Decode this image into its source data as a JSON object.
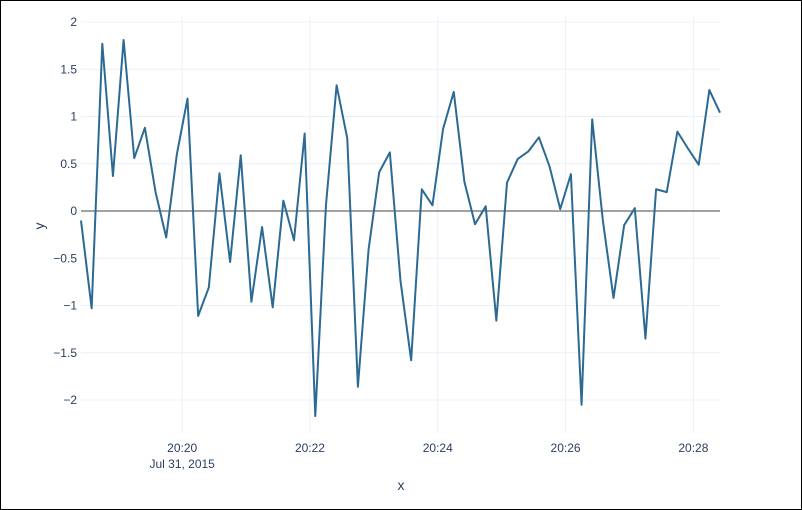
{
  "chart_data": {
    "type": "line",
    "xlabel": "x",
    "ylabel": "y",
    "ylim": [
      -2.35,
      2.05
    ],
    "xlim": [
      "2015-07-31 20:18:25",
      "2015-07-31 20:28:25"
    ],
    "x_ticks": [
      {
        "value": "2015-07-31 20:20:00",
        "label": "20:20",
        "sublabel": "Jul 31, 2015"
      },
      {
        "value": "2015-07-31 20:22:00",
        "label": "20:22"
      },
      {
        "value": "2015-07-31 20:24:00",
        "label": "20:24"
      },
      {
        "value": "2015-07-31 20:26:00",
        "label": "20:26"
      },
      {
        "value": "2015-07-31 20:28:00",
        "label": "20:28"
      }
    ],
    "y_ticks": [
      {
        "value": 2,
        "label": "2"
      },
      {
        "value": 1.5,
        "label": "1.5"
      },
      {
        "value": 1,
        "label": "1"
      },
      {
        "value": 0.5,
        "label": "0.5"
      },
      {
        "value": 0,
        "label": "0"
      },
      {
        "value": -0.5,
        "label": "−0.5"
      },
      {
        "value": -1,
        "label": "−1"
      },
      {
        "value": -1.5,
        "label": "−1.5"
      },
      {
        "value": -2,
        "label": "−2"
      }
    ],
    "grid": true,
    "zero_line": true,
    "line_color": "#2c6a94",
    "grid_color": "#ebf0f8",
    "zeroline_color": "#444444",
    "series": [
      {
        "x": [
          "20:18:25",
          "20:18:35",
          "20:18:45",
          "20:18:55",
          "20:19:05",
          "20:19:15",
          "20:19:25",
          "20:19:35",
          "20:19:45",
          "20:19:55",
          "20:20:05",
          "20:20:15",
          "20:20:25",
          "20:20:35",
          "20:20:45",
          "20:20:55",
          "20:21:05",
          "20:21:15",
          "20:21:25",
          "20:21:35",
          "20:21:45",
          "20:21:55",
          "20:22:05",
          "20:22:15",
          "20:22:25",
          "20:22:35",
          "20:22:45",
          "20:22:55",
          "20:23:05",
          "20:23:15",
          "20:23:25",
          "20:23:35",
          "20:23:45",
          "20:23:55",
          "20:24:05",
          "20:24:15",
          "20:24:25",
          "20:24:35",
          "20:24:45",
          "20:24:55",
          "20:25:05",
          "20:25:15",
          "20:25:25",
          "20:25:35",
          "20:25:45",
          "20:25:55",
          "20:26:05",
          "20:26:15",
          "20:26:25",
          "20:26:35",
          "20:26:45",
          "20:26:55",
          "20:27:05",
          "20:27:15",
          "20:27:25",
          "20:27:35",
          "20:27:45",
          "20:27:55",
          "20:28:05",
          "20:28:15",
          "20:28:25"
        ],
        "y": [
          -0.1,
          -1.03,
          1.77,
          0.37,
          1.81,
          0.56,
          0.88,
          0.2,
          -0.28,
          0.6,
          1.19,
          -1.11,
          -0.81,
          0.4,
          -0.54,
          0.59,
          -0.96,
          -0.17,
          -1.02,
          0.11,
          -0.31,
          0.82,
          -2.17,
          0.06,
          1.33,
          0.77,
          -1.86,
          -0.41,
          0.41,
          0.62,
          -0.74,
          -1.58,
          0.23,
          0.06,
          0.87,
          1.26,
          0.31,
          -0.14,
          0.05,
          -1.16,
          0.3,
          0.55,
          0.63,
          0.78,
          0.47,
          0.02,
          0.39,
          -2.05,
          0.97,
          -0.1,
          -0.92,
          -0.15,
          0.03,
          -1.35,
          0.23,
          0.2,
          0.84,
          0.66,
          0.49,
          1.28,
          1.04
        ]
      }
    ]
  }
}
